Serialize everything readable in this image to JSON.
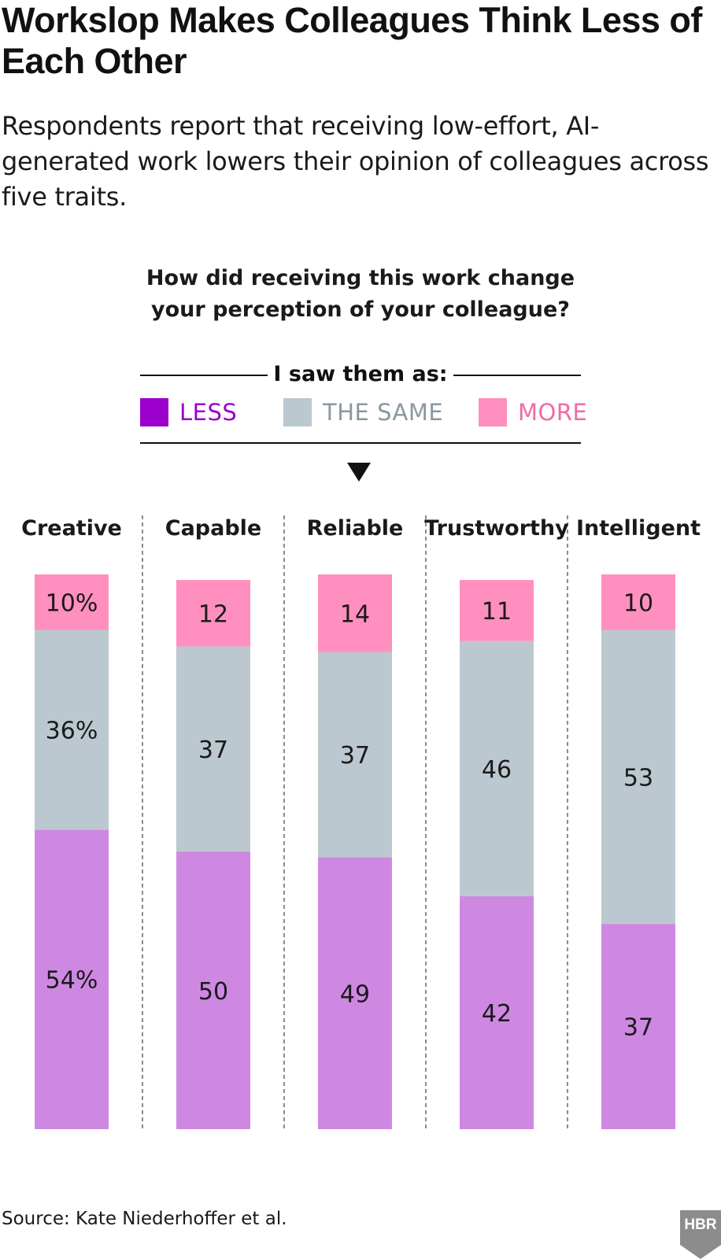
{
  "title": "Workslop Makes Colleagues Think Less of Each Other",
  "subtitle": "Respondents report that receiving low-effort, AI-generated work lowers their opinion of colleagues across five traits.",
  "question": "How did receiving this work change your perception of your colleague?",
  "legend": {
    "title": "I saw them as:",
    "items": [
      {
        "label": "LESS",
        "color": "#9b00cc",
        "text_color": "#9b00cc"
      },
      {
        "label": "THE SAME",
        "color": "#bcc8cf",
        "text_color": "#8a98a0"
      },
      {
        "label": "MORE",
        "color": "#ff8fbe",
        "text_color": "#f06aa4"
      }
    ]
  },
  "source": "Source: Kate Niederhoffer et al.",
  "logo_text": "HBR",
  "chart_data": {
    "type": "bar",
    "stacked": true,
    "orientation": "vertical",
    "unit": "%",
    "categories": [
      "Creative",
      "Capable",
      "Reliable",
      "Trustworthy",
      "Intelligent"
    ],
    "series": [
      {
        "name": "LESS",
        "color": "#ce88e2",
        "values": [
          54,
          50,
          49,
          42,
          37
        ]
      },
      {
        "name": "THE SAME",
        "color": "#bcc8cf",
        "values": [
          36,
          37,
          37,
          46,
          53
        ]
      },
      {
        "name": "MORE",
        "color": "#ff8fbe",
        "values": [
          10,
          12,
          14,
          11,
          10
        ]
      }
    ],
    "value_labels": [
      [
        "54%",
        "36%",
        "10%"
      ],
      [
        "50",
        "37",
        "12"
      ],
      [
        "49",
        "37",
        "14"
      ],
      [
        "42",
        "46",
        "11"
      ],
      [
        "37",
        "53",
        "10"
      ]
    ],
    "legend_position": "top",
    "grid": false
  }
}
